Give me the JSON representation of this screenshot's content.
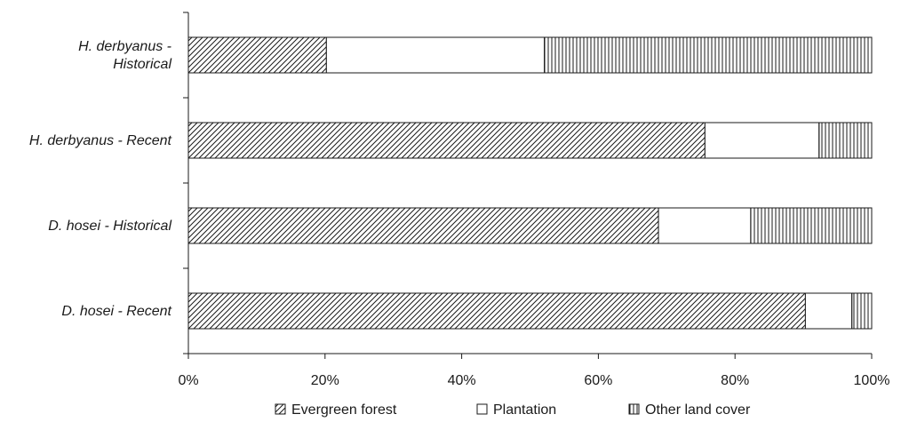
{
  "chart_data": {
    "type": "bar",
    "orientation": "horizontal",
    "stacked": true,
    "percent_stacked": true,
    "categories": [
      [
        "H. derbyanus -",
        "Historical"
      ],
      [
        "H. derbyanus - Recent"
      ],
      [
        "D. hosei - Historical"
      ],
      [
        "D. hosei - Recent"
      ]
    ],
    "series": [
      {
        "name": "Evergreen forest",
        "pattern": "diagonal-hatch",
        "values": [
          20.2,
          75.6,
          68.8,
          90.3
        ]
      },
      {
        "name": "Plantation",
        "pattern": "blank",
        "values": [
          31.9,
          16.7,
          13.5,
          6.8
        ]
      },
      {
        "name": "Other land cover",
        "pattern": "vertical-lines",
        "values": [
          47.9,
          7.7,
          17.7,
          2.9
        ]
      }
    ],
    "x_ticks": [
      "0%",
      "20%",
      "40%",
      "60%",
      "80%",
      "100%"
    ],
    "xlim": [
      0,
      100
    ],
    "grid": false,
    "legend_position": "bottom"
  },
  "colors": {
    "stroke": "#1a1a1a",
    "fill": "#ffffff"
  }
}
